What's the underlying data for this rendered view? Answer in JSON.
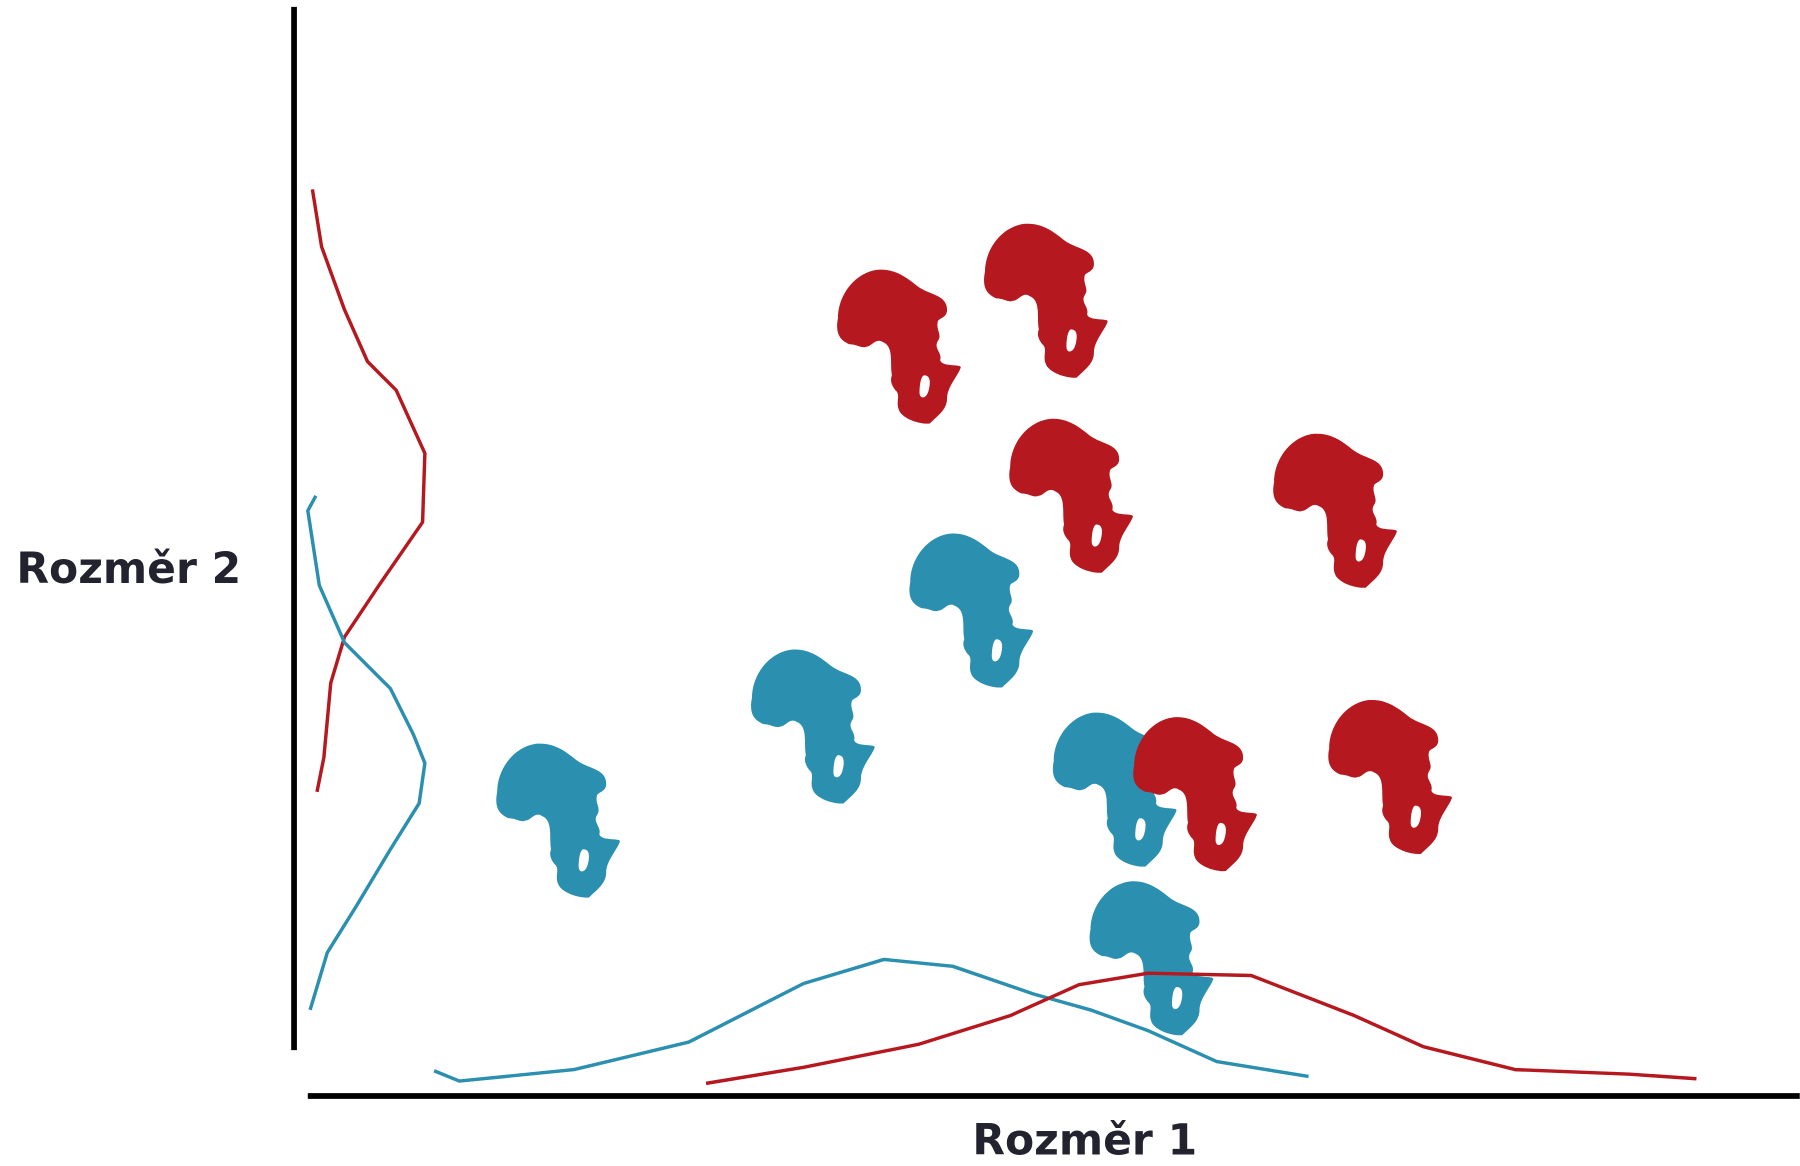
{
  "axes": {
    "x_label": "Rozměr 1",
    "y_label": "Rozměr 2"
  }
}
